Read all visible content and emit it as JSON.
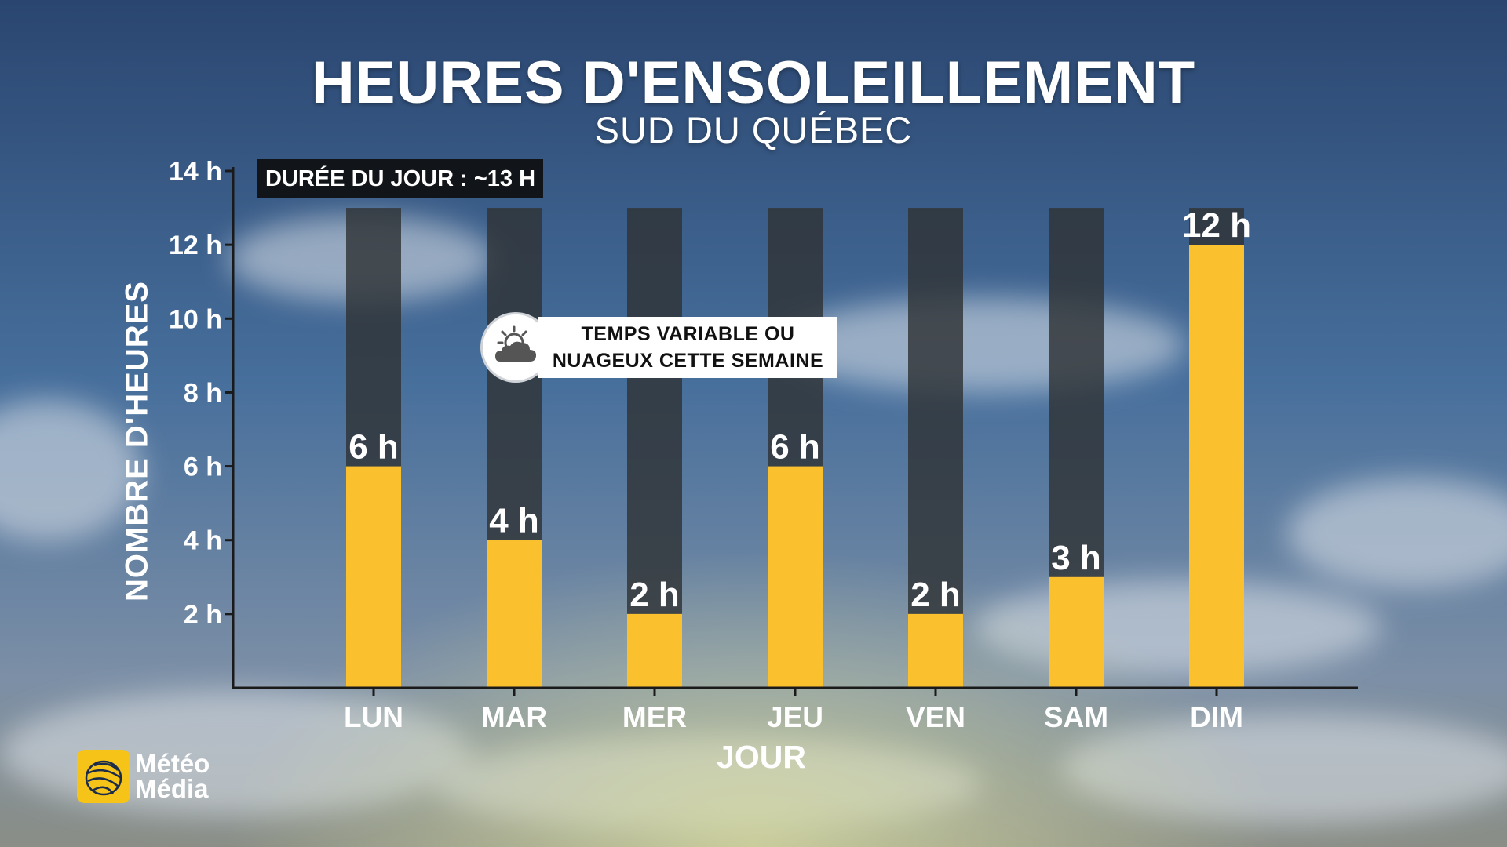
{
  "header": {
    "title": "HEURES D'ENSOLEILLEMENT",
    "subtitle": "SUD DU QUÉBEC"
  },
  "badge": {
    "day_length": "DURÉE DU JOUR : ~13 H"
  },
  "note": {
    "line1": "TEMPS VARIABLE OU",
    "line2": "NUAGEUX CETTE SEMAINE",
    "icon": "sun-behind-cloud-icon"
  },
  "logo": {
    "line1": "Météo",
    "line2": "Média"
  },
  "colors": {
    "sun_bar": "#fbc02d",
    "daylight_bar": "#2f3336",
    "axis": "#1a1a1a",
    "text": "#ffffff"
  },
  "chart_data": {
    "type": "bar",
    "title": "HEURES D'ENSOLEILLEMENT",
    "subtitle": "SUD DU QUÉBEC",
    "xlabel": "JOUR",
    "ylabel": "NOMBRE D'HEURES",
    "categories": [
      "LUN",
      "MAR",
      "MER",
      "JEU",
      "VEN",
      "SAM",
      "DIM"
    ],
    "series": [
      {
        "values": [
          6,
          4,
          2,
          6,
          2,
          3,
          12
        ]
      }
    ],
    "background_values": [
      13,
      13,
      13,
      13,
      13,
      13,
      13
    ],
    "data_labels": [
      "6 h",
      "4 h",
      "2 h",
      "6 h",
      "2 h",
      "3 h",
      "12 h"
    ],
    "yticks": [
      2,
      4,
      6,
      8,
      10,
      12,
      14
    ],
    "ytick_labels": [
      "2 h",
      "4 h",
      "6 h",
      "8 h",
      "10 h",
      "12 h",
      "14 h"
    ],
    "ylim": [
      0,
      14
    ],
    "grid": false,
    "legend": "none"
  }
}
